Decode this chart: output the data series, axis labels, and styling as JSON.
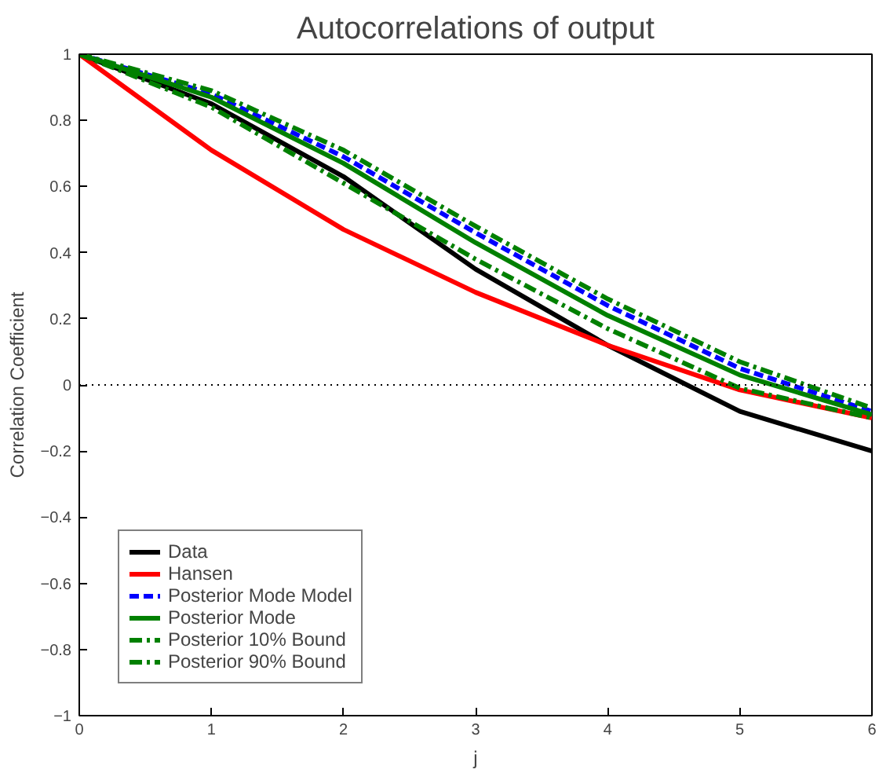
{
  "chart_data": {
    "type": "line",
    "title": "Autocorrelations of output",
    "xlabel": "j",
    "ylabel": "Correlation Coefficient",
    "x": [
      0,
      1,
      2,
      3,
      4,
      5,
      6
    ],
    "series": [
      {
        "name": "Data",
        "color": "#000000",
        "line_style": "solid",
        "values": [
          1,
          0.85,
          0.63,
          0.35,
          0.12,
          -0.08,
          -0.2
        ]
      },
      {
        "name": "Hansen",
        "color": "#ff0000",
        "line_style": "solid",
        "values": [
          1,
          0.71,
          0.47,
          0.28,
          0.12,
          -0.015,
          -0.1
        ]
      },
      {
        "name": "Posterior Mode Model",
        "color": "#0000ff",
        "line_style": "dashed",
        "values": [
          1,
          0.88,
          0.69,
          0.46,
          0.24,
          0.05,
          -0.08
        ]
      },
      {
        "name": "Posterior Mode",
        "color": "#008000",
        "line_style": "solid",
        "values": [
          1,
          0.87,
          0.67,
          0.43,
          0.21,
          0.03,
          -0.09
        ]
      },
      {
        "name": "Posterior 10% Bound",
        "color": "#008000",
        "line_style": "dashdot",
        "values": [
          1,
          0.84,
          0.61,
          0.38,
          0.17,
          -0.01,
          -0.1
        ]
      },
      {
        "name": "Posterior 90% Bound",
        "color": "#008000",
        "line_style": "dashdot",
        "values": [
          1,
          0.89,
          0.71,
          0.48,
          0.26,
          0.07,
          -0.07
        ]
      }
    ],
    "xlim": [
      0,
      6
    ],
    "xticks": [
      0,
      1,
      2,
      3,
      4,
      5,
      6
    ],
    "ylim": [
      -1,
      1
    ],
    "yticks": [
      {
        "value": -1,
        "label": "−1"
      },
      {
        "value": -0.8,
        "label": "−0.8"
      },
      {
        "value": -0.6,
        "label": "−0.6"
      },
      {
        "value": -0.4,
        "label": "−0.4"
      },
      {
        "value": -0.2,
        "label": "−0.2"
      },
      0,
      0.2,
      0.4,
      0.6,
      0.8,
      1
    ],
    "ref_lines": [
      {
        "axis": "y",
        "value": 0,
        "label": null,
        "color": "#000000",
        "line_style": "dotted"
      }
    ],
    "grid": false,
    "legend": "bottom left",
    "marker": "none"
  }
}
